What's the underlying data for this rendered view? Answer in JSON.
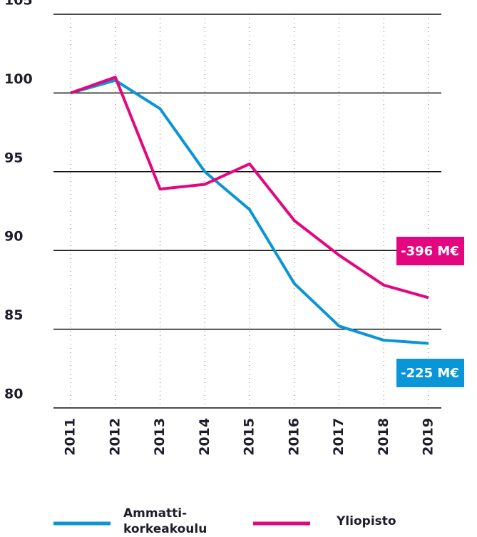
{
  "chart_data": {
    "type": "line",
    "categories": [
      "2011",
      "2012",
      "2013",
      "2014",
      "2015",
      "2016",
      "2017",
      "2018",
      "2019"
    ],
    "series": [
      {
        "name": "Ammatti-\nkorkeakoulu",
        "color": "#0a95d6",
        "values": [
          100,
          100.8,
          99.0,
          95.0,
          92.6,
          87.9,
          85.2,
          84.3,
          84.1
        ]
      },
      {
        "name": "Yliopisto",
        "color": "#e4067e",
        "values": [
          100,
          101.0,
          93.9,
          94.2,
          95.5,
          91.9,
          89.7,
          87.8,
          87.0
        ]
      }
    ],
    "annotations": [
      {
        "text": "-396 M€",
        "color": "#e4067e"
      },
      {
        "text": "-225 M€",
        "color": "#0a95d6"
      }
    ],
    "ylim": [
      80,
      105
    ],
    "yticks": [
      80,
      85,
      90,
      95,
      100,
      105
    ],
    "grid": true
  }
}
